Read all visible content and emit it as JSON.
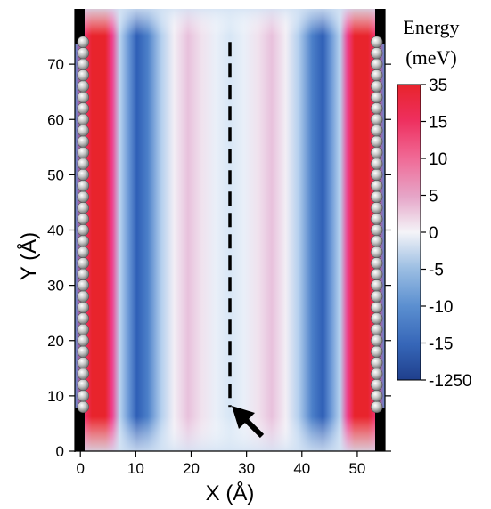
{
  "chart_data": {
    "type": "heatmap",
    "xlabel": "X (Å)",
    "ylabel": "Y (Å)",
    "xlim": [
      -1,
      55
    ],
    "ylim": [
      0,
      80
    ],
    "x_ticks": [
      0,
      10,
      20,
      30,
      40,
      50
    ],
    "y_ticks": [
      0,
      10,
      20,
      30,
      40,
      50,
      60,
      70
    ],
    "colorbar": {
      "title_line1": "Energy",
      "title_line2": "(meV)",
      "tick_labels": [
        "35",
        "15",
        "10",
        "5",
        "0",
        "-5",
        "-10",
        "-15",
        "-1250"
      ],
      "colors": [
        "#e8242c",
        "#ee2f5e",
        "#f06a96",
        "#e6a6c8",
        "#f4f4f8",
        "#9dbfe3",
        "#5b8fd0",
        "#3666b8",
        "#1f3f8c"
      ],
      "colors_legend": "red = positive (35 meV), white = 0, dark blue = negative (-1250 meV)"
    },
    "features": {
      "atom_chain_left_x": 0.5,
      "atom_chain_right_x": 53.5,
      "atom_chain_y_range": [
        8,
        74
      ],
      "red_band_centers_x": [
        5,
        49
      ],
      "blue_band_centers_x": [
        9.5,
        44.5
      ],
      "pink_band_centers_x": [
        19,
        35
      ],
      "dashed_path": {
        "x": 27,
        "y_start": 74,
        "y_end": 8
      },
      "arrow_pointing_to": {
        "x": 27,
        "y": 8
      }
    }
  }
}
